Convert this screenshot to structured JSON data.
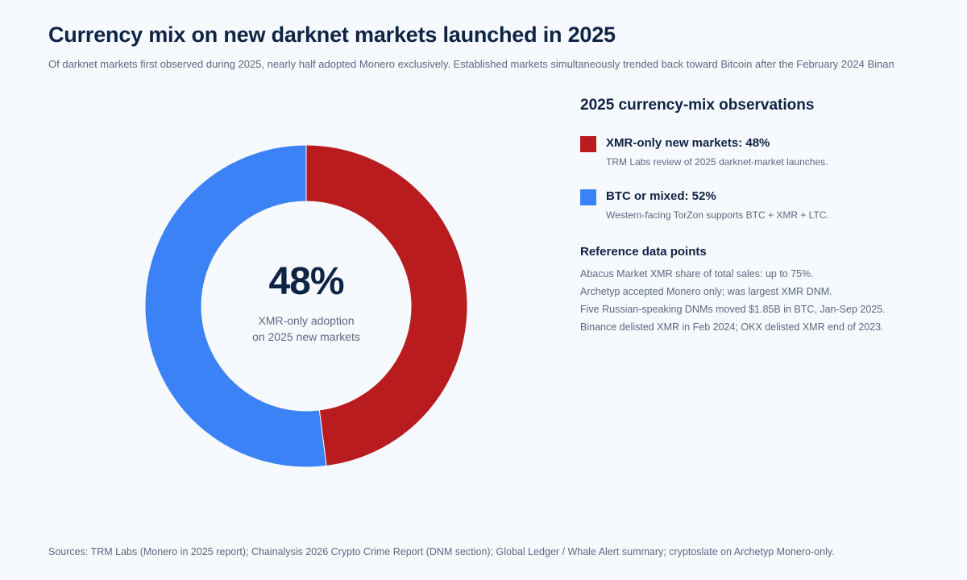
{
  "header": {
    "title": "Currency mix on new darknet markets launched in 2025",
    "subtitle": "Of darknet markets first observed during 2025, nearly half adopted Monero exclusively. Established markets simultaneously trended back toward Bitcoin after the February 2024 Binan"
  },
  "center": {
    "value": "48%",
    "caption_line1": "XMR-only adoption",
    "caption_line2": "on 2025 new markets"
  },
  "panel": {
    "title": "2025 currency-mix observations",
    "legend": [
      {
        "label": "XMR-only new markets: 48%",
        "note": "TRM Labs review of 2025 darknet-market launches.",
        "color": "#b91c1f"
      },
      {
        "label": "BTC or mixed: 52%",
        "note": "Western-facing TorZon supports BTC + XMR + LTC.",
        "color": "#3b82f6"
      }
    ],
    "reference_title": "Reference data points",
    "reference_points": [
      "Abacus Market XMR share of total sales: up to 75%.",
      "Archetyp accepted Monero only; was largest XMR DNM.",
      "Five Russian-speaking DNMs moved $1.85B in BTC, Jan-Sep 2025.",
      "Binance delisted XMR in Feb 2024; OKX delisted XMR end of 2023."
    ]
  },
  "footer": {
    "sources": "Sources: TRM Labs (Monero in 2025 report); Chainalysis 2026 Crypto Crime Report (DNM section); Global Ledger / Whale Alert summary; cryptoslate on Archetyp Monero-only."
  },
  "chart_data": {
    "type": "pie",
    "variant": "donut",
    "categories": [
      "XMR-only new markets",
      "BTC or mixed"
    ],
    "values": [
      48,
      52
    ],
    "unit": "%",
    "colors": [
      "#b91c1f",
      "#3b82f6"
    ],
    "legend_position": "right"
  }
}
